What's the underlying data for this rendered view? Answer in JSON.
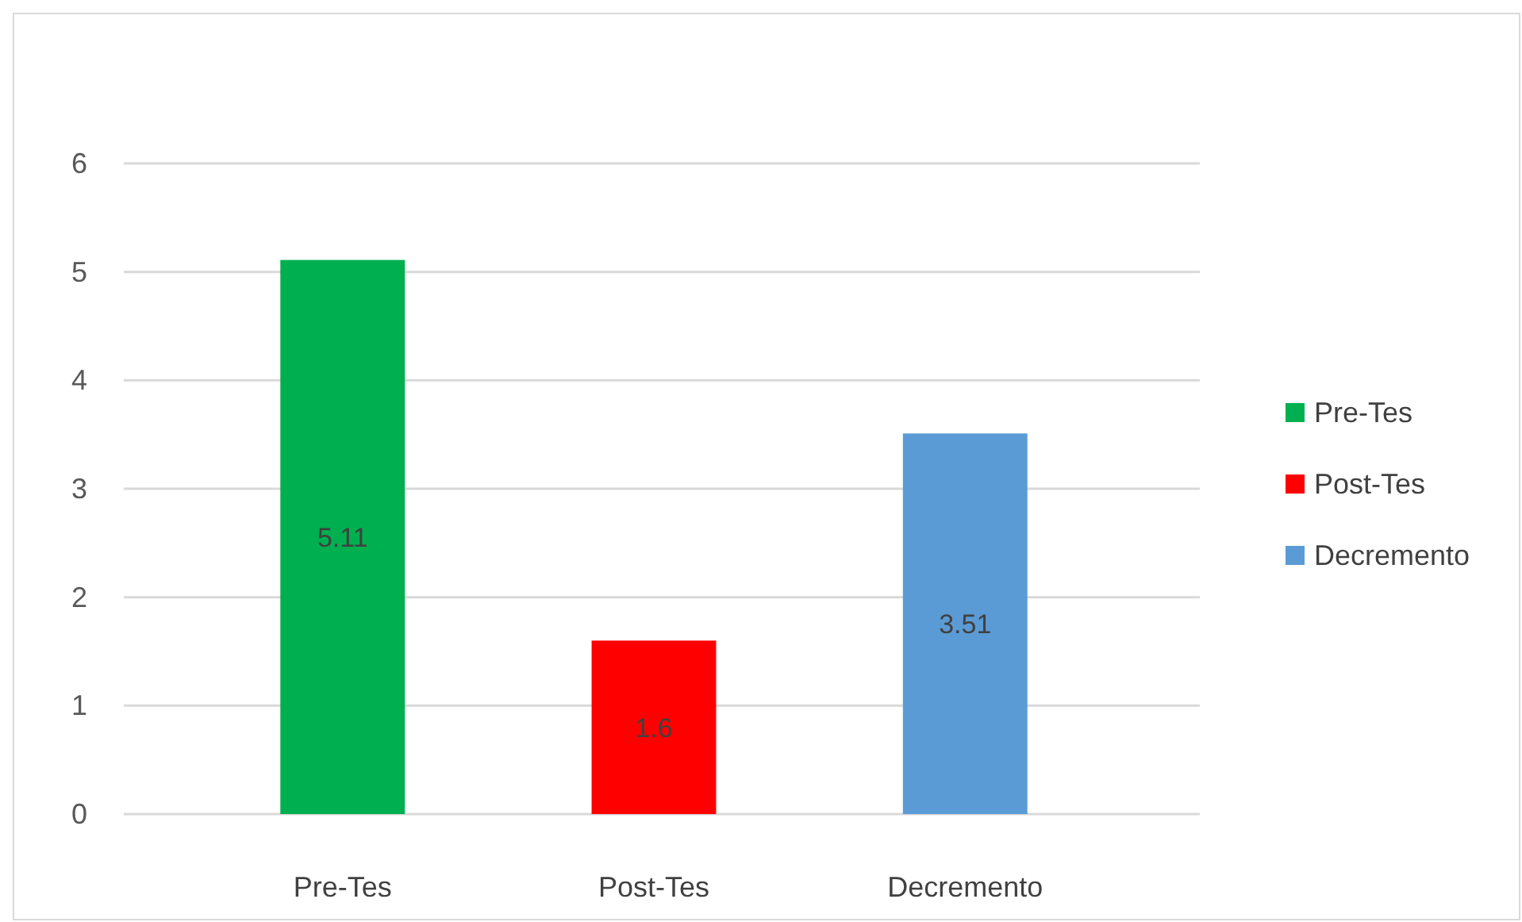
{
  "chart_data": {
    "type": "bar",
    "categories": [
      "Pre-Tes",
      "Post-Tes",
      "Decremento"
    ],
    "series": [
      {
        "name": "Pre-Tes",
        "color": "#00b050",
        "values": [
          5.11,
          null,
          null
        ]
      },
      {
        "name": "Post-Tes",
        "color": "#ff0000",
        "values": [
          null,
          1.6,
          null
        ]
      },
      {
        "name": "Decremento",
        "color": "#5b9bd5",
        "values": [
          null,
          null,
          3.51
        ]
      }
    ],
    "ylim": [
      0,
      6
    ],
    "yticks": [
      0,
      1,
      2,
      3,
      4,
      5,
      6
    ],
    "grid": "y",
    "legend": "right",
    "data_labels": true
  }
}
